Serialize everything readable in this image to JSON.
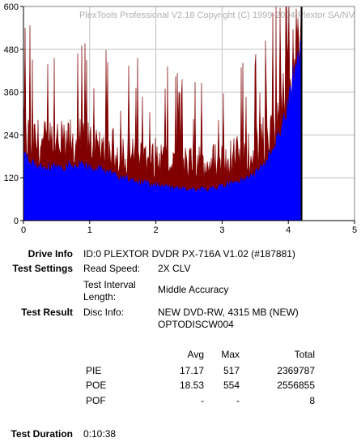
{
  "chart_data": {
    "type": "area",
    "watermark": "PlexTools Professional V2.18 Copyright (C) 1999-2004 Plextor SA/NV",
    "xlim": [
      0,
      5
    ],
    "ylim": [
      0,
      600
    ],
    "xticks": [
      "0",
      "1",
      "2",
      "3",
      "4",
      "5"
    ],
    "yticks": [
      "0",
      "120",
      "240",
      "360",
      "480",
      "600"
    ],
    "grid": true,
    "data_end_x": 4.2,
    "series": [
      {
        "color": "#0000ff",
        "x": [
          0,
          0.1,
          0.25,
          0.5,
          0.75,
          1.0,
          1.25,
          1.5,
          1.75,
          2.0,
          2.25,
          2.5,
          2.75,
          3.0,
          3.25,
          3.5,
          3.6,
          3.7,
          3.8,
          3.9,
          4.0,
          4.1,
          4.2
        ],
        "y": [
          185,
          165,
          150,
          150,
          155,
          150,
          135,
          120,
          108,
          100,
          92,
          85,
          88,
          100,
          110,
          130,
          150,
          180,
          215,
          260,
          330,
          430,
          470
        ]
      },
      {
        "color": "#800000",
        "x": [
          0,
          0.1,
          0.25,
          0.5,
          0.75,
          1.0,
          1.25,
          1.5,
          1.75,
          2.0,
          2.25,
          2.5,
          2.75,
          3.0,
          3.25,
          3.5,
          3.6,
          3.7,
          3.8,
          3.9,
          4.0,
          4.1,
          4.2
        ],
        "y": [
          270,
          250,
          240,
          235,
          240,
          240,
          225,
          210,
          200,
          195,
          185,
          175,
          180,
          190,
          200,
          220,
          240,
          270,
          310,
          360,
          430,
          500,
          520
        ]
      }
    ]
  },
  "info": {
    "drive_info_label": "Drive Info",
    "drive_info_value": "ID:0 PLEXTOR DVDR PX-716A V1.02 (#187881)",
    "test_settings_label": "Test Settings",
    "read_speed_label": "Read Speed:",
    "read_speed_value": "2X CLV",
    "interval_label_1": "Test Interval",
    "interval_label_2": "Length:",
    "interval_value": "Middle Accuracy",
    "test_result_label": "Test Result",
    "disc_info_label": "Disc Info:",
    "disc_info_value_1": "NEW DVD-RW, 4315 MB (NEW)",
    "disc_info_value_2": "OPTODISCW004",
    "test_duration_label": "Test Duration",
    "test_duration_value": "0:10:38"
  },
  "results": {
    "headers": {
      "avg": "Avg",
      "max": "Max",
      "total": "Total"
    },
    "rows": [
      {
        "name": "PIE",
        "avg": "17.17",
        "max": "517",
        "total": "2369787"
      },
      {
        "name": "POE",
        "avg": "18.53",
        "max": "554",
        "total": "2556855"
      },
      {
        "name": "POF",
        "avg": "-",
        "max": "-",
        "total": "8"
      }
    ]
  }
}
